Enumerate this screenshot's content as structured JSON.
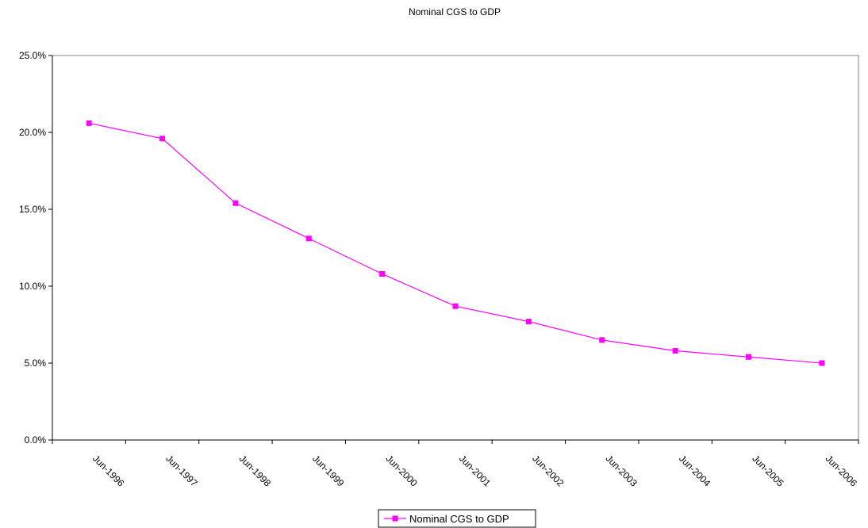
{
  "chart_data": {
    "type": "line",
    "title": "Nominal CGS to GDP",
    "xlabel": "",
    "ylabel": "",
    "categories": [
      "Jun-1996",
      "Jun-1997",
      "Jun-1998",
      "Jun-1999",
      "Jun-2000",
      "Jun-2001",
      "Jun-2002",
      "Jun-2003",
      "Jun-2004",
      "Jun-2005",
      "Jun-2006"
    ],
    "series": [
      {
        "name": "Nominal CGS to GDP",
        "values": [
          0.206,
          0.196,
          0.154,
          0.131,
          0.108,
          0.087,
          0.077,
          0.065,
          0.058,
          0.054,
          0.05
        ],
        "color": "#ff00ff",
        "marker": "square"
      }
    ],
    "ylim": [
      0,
      0.25
    ],
    "y_ticks": [
      0,
      0.05,
      0.1,
      0.15,
      0.2,
      0.25
    ],
    "y_tick_labels": [
      "0.0%",
      "5.0%",
      "10.0%",
      "15.0%",
      "20.0%",
      "25.0%"
    ],
    "grid": false,
    "legend_position": "bottom-center",
    "plot_border": true
  }
}
